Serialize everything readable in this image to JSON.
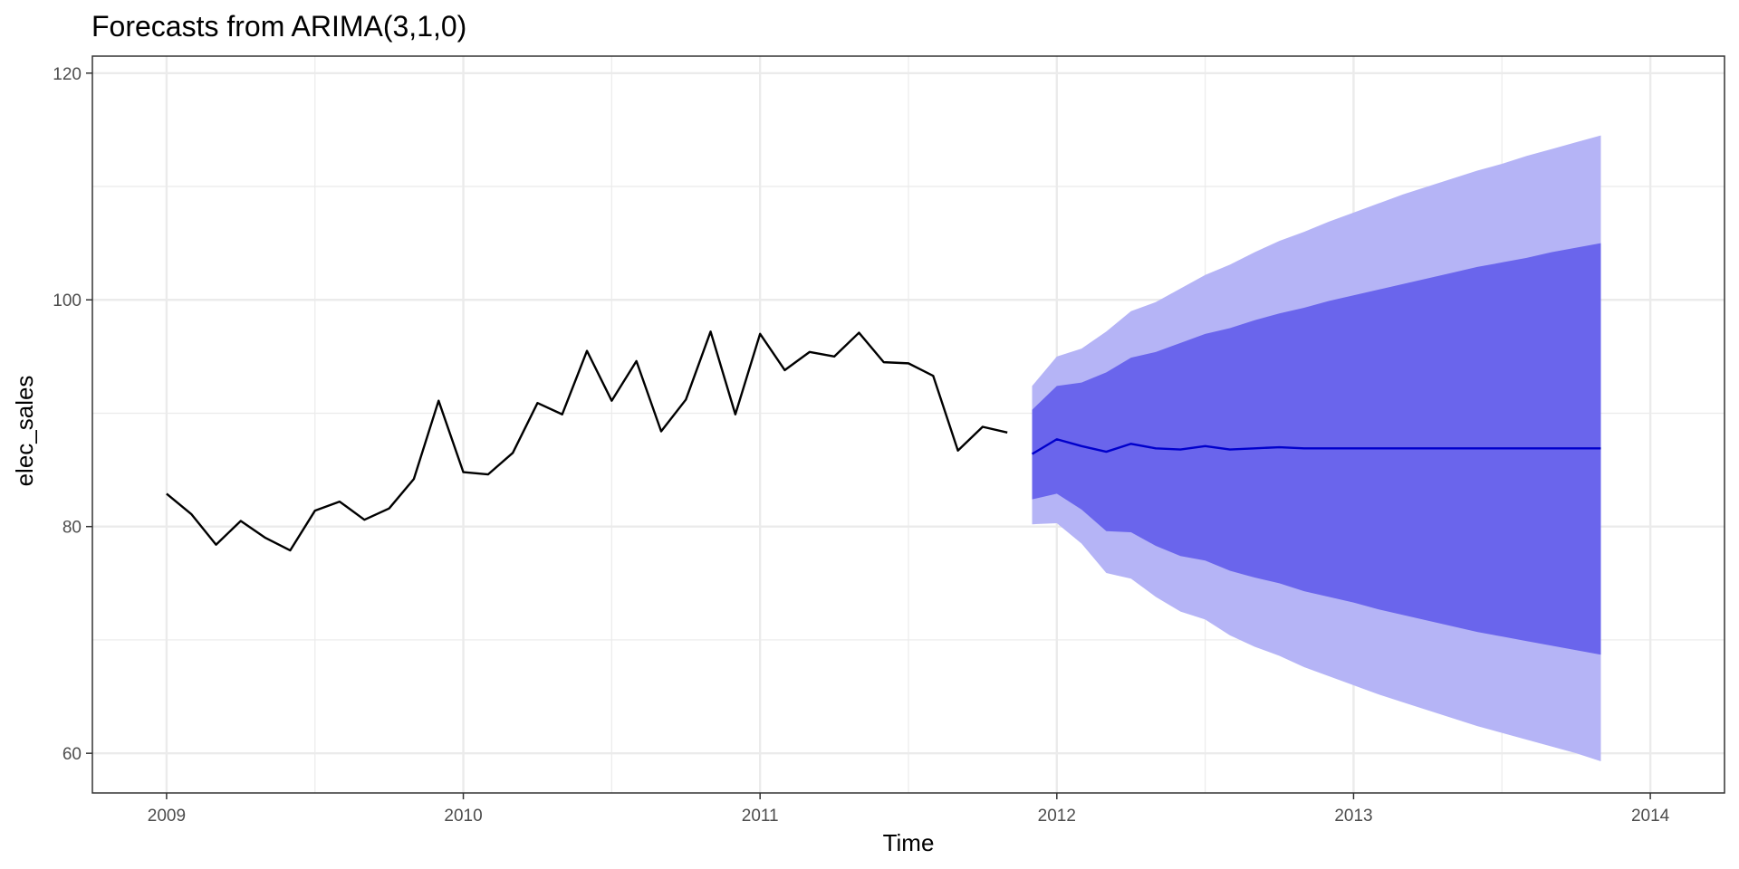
{
  "chart_data": {
    "type": "line",
    "title": "Forecasts from ARIMA(3,1,0)",
    "xlabel": "Time",
    "ylabel": "elec_sales",
    "xlim": [
      2008.75,
      2014.25
    ],
    "ylim": [
      56.5,
      121.5
    ],
    "x_major_ticks": [
      2009,
      2010,
      2011,
      2012,
      2013,
      2014
    ],
    "x_tick_labels": [
      "2009",
      "2010",
      "2011",
      "2012",
      "2013",
      "2014"
    ],
    "x_minor_ticks": [
      2009.5,
      2010.5,
      2011.5,
      2012.5,
      2013.5
    ],
    "y_major_ticks": [
      60,
      80,
      100,
      120
    ],
    "y_tick_labels": [
      "60",
      "80",
      "100",
      "120"
    ],
    "y_minor_ticks": [
      70,
      90,
      110
    ],
    "grid": true,
    "colors": {
      "observed": "#000000",
      "forecast": "#0000cc",
      "band_80": "#6a65ec",
      "band_95": "#b5b4f6",
      "grid": "#ebebeb",
      "panel_border": "#333333"
    },
    "series": [
      {
        "kind": "observed",
        "x": [
          2009.0,
          2009.0833,
          2009.1667,
          2009.25,
          2009.3333,
          2009.4167,
          2009.5,
          2009.5833,
          2009.6667,
          2009.75,
          2009.8333,
          2009.9167,
          2010.0,
          2010.0833,
          2010.1667,
          2010.25,
          2010.3333,
          2010.4167,
          2010.5,
          2010.5833,
          2010.6667,
          2010.75,
          2010.8333,
          2010.9167,
          2011.0,
          2011.0833,
          2011.1667,
          2011.25,
          2011.3333,
          2011.4167,
          2011.5,
          2011.5833,
          2011.6667,
          2011.75,
          2011.8333
        ],
        "values": [
          82.9,
          81.1,
          78.4,
          80.5,
          79.0,
          77.9,
          81.4,
          82.2,
          80.6,
          81.6,
          84.2,
          91.1,
          84.8,
          84.6,
          86.5,
          90.9,
          89.9,
          95.5,
          91.1,
          94.6,
          88.4,
          91.2,
          97.2,
          89.9,
          97.0,
          93.8,
          95.4,
          95.0,
          97.1,
          94.5,
          94.4,
          93.3,
          86.7,
          88.8,
          88.3
        ]
      },
      {
        "kind": "forecast",
        "x": [
          2011.9167,
          2012.0,
          2012.0833,
          2012.1667,
          2012.25,
          2012.3333,
          2012.4167,
          2012.5,
          2012.5833,
          2012.6667,
          2012.75,
          2012.8333,
          2012.9167,
          2013.0,
          2013.0833,
          2013.1667,
          2013.25,
          2013.3333,
          2013.4167,
          2013.5,
          2013.5833,
          2013.6667,
          2013.75,
          2013.8333
        ],
        "values": [
          86.4,
          87.7,
          87.1,
          86.6,
          87.3,
          86.9,
          86.8,
          87.1,
          86.8,
          86.9,
          87.0,
          86.9,
          86.9,
          86.9,
          86.9,
          86.9,
          86.9,
          86.9,
          86.9,
          86.9,
          86.9,
          86.9,
          86.9,
          86.9
        ],
        "lo80": [
          82.4,
          82.9,
          81.5,
          79.6,
          79.5,
          78.3,
          77.4,
          77.0,
          76.1,
          75.5,
          75.0,
          74.3,
          73.8,
          73.3,
          72.7,
          72.2,
          71.7,
          71.2,
          70.7,
          70.3,
          69.9,
          69.5,
          69.1,
          68.7
        ],
        "hi80": [
          90.3,
          92.4,
          92.7,
          93.6,
          94.9,
          95.4,
          96.2,
          97.0,
          97.5,
          98.2,
          98.8,
          99.3,
          99.9,
          100.4,
          100.9,
          101.4,
          101.9,
          102.4,
          102.9,
          103.3,
          103.7,
          104.2,
          104.6,
          105.0
        ],
        "lo95": [
          80.2,
          80.3,
          78.5,
          75.9,
          75.4,
          73.8,
          72.5,
          71.8,
          70.4,
          69.4,
          68.6,
          67.6,
          66.8,
          66.0,
          65.2,
          64.5,
          63.8,
          63.1,
          62.4,
          61.8,
          61.2,
          60.6,
          60.0,
          59.3
        ],
        "hi95": [
          92.4,
          95.0,
          95.7,
          97.2,
          99.0,
          99.8,
          101.0,
          102.2,
          103.1,
          104.2,
          105.2,
          106.0,
          106.9,
          107.7,
          108.5,
          109.3,
          110.0,
          110.7,
          111.4,
          112.0,
          112.7,
          113.3,
          113.9,
          114.5
        ]
      }
    ]
  }
}
